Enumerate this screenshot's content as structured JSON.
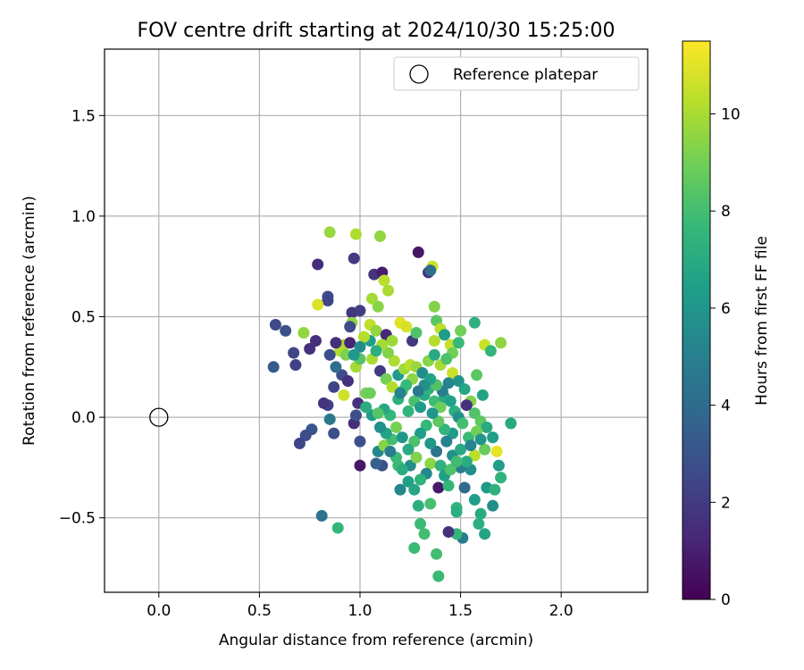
{
  "chart_data": {
    "type": "scatter",
    "title": "FOV centre drift starting at 2024/10/30 15:25:00",
    "xlabel": "Angular distance from reference (arcmin)",
    "ylabel": "Rotation from reference (arcmin)",
    "xlim": [
      -0.27,
      2.43
    ],
    "ylim": [
      -0.87,
      1.83
    ],
    "xticks": [
      0.0,
      0.5,
      1.0,
      1.5,
      2.0
    ],
    "xtick_labels": [
      "0.0",
      "0.5",
      "1.0",
      "1.5",
      "2.0"
    ],
    "yticks": [
      -0.5,
      0.0,
      0.5,
      1.0,
      1.5
    ],
    "ytick_labels": [
      "−0.5",
      "0.0",
      "0.5",
      "1.0",
      "1.5"
    ],
    "grid": true,
    "legend": {
      "placement": "top-right",
      "entries": [
        {
          "label": "Reference platepar",
          "marker": "open-circle"
        }
      ]
    },
    "reference_point": {
      "x": 0.0,
      "y": 0.0
    },
    "colorbar": {
      "label": "Hours from first FF file",
      "colormap": "viridis",
      "range": [
        0,
        11.5
      ],
      "ticks": [
        0,
        2,
        4,
        6,
        8,
        10
      ],
      "tick_labels": [
        "0",
        "2",
        "4",
        "6",
        "8",
        "10"
      ]
    },
    "colormap_stops": [
      "#440154",
      "#482878",
      "#3e4989",
      "#31688e",
      "#26828e",
      "#1f9e89",
      "#35b779",
      "#6ece58",
      "#b5de2b",
      "#fde725"
    ],
    "series": [
      {
        "color_by": "hours",
        "points": [
          [
            0.58,
            0.46,
            2.6
          ],
          [
            0.63,
            0.43,
            2.9
          ],
          [
            0.57,
            0.25,
            3.3
          ],
          [
            0.67,
            0.32,
            2.4
          ],
          [
            0.68,
            0.26,
            2.3
          ],
          [
            0.75,
            0.34,
            1.6
          ],
          [
            0.78,
            0.38,
            1.5
          ],
          [
            0.72,
            0.42,
            9.6
          ],
          [
            0.79,
            0.76,
            1.5
          ],
          [
            0.85,
            0.92,
            9.7
          ],
          [
            0.84,
            0.6,
            2.6
          ],
          [
            0.84,
            0.58,
            2.4
          ],
          [
            0.79,
            0.56,
            10.9
          ],
          [
            0.97,
            0.79,
            2.0
          ],
          [
            0.98,
            0.91,
            10.1
          ],
          [
            1.1,
            0.9,
            9.6
          ],
          [
            1.07,
            0.71,
            1.8
          ],
          [
            1.11,
            0.72,
            0.9
          ],
          [
            1.12,
            0.68,
            10.3
          ],
          [
            1.14,
            0.63,
            10.0
          ],
          [
            1.29,
            0.82,
            0.7
          ],
          [
            1.36,
            0.75,
            10.6
          ],
          [
            1.34,
            0.72,
            1.5
          ],
          [
            1.35,
            0.73,
            4.1
          ],
          [
            1.06,
            0.59,
            9.9
          ],
          [
            1.09,
            0.55,
            9.4
          ],
          [
            0.96,
            0.52,
            1.8
          ],
          [
            1.0,
            0.53,
            2.1
          ],
          [
            0.96,
            0.47,
            9.5
          ],
          [
            0.95,
            0.45,
            2.6
          ],
          [
            0.92,
            0.36,
            9.9
          ],
          [
            0.9,
            0.33,
            10.2
          ],
          [
            0.93,
            0.31,
            9.2
          ],
          [
            0.85,
            0.31,
            2.8
          ],
          [
            0.88,
            0.37,
            1.6
          ],
          [
            0.95,
            0.37,
            1.2
          ],
          [
            1.05,
            0.46,
            10.4
          ],
          [
            1.08,
            0.43,
            9.6
          ],
          [
            1.13,
            0.41,
            1.3
          ],
          [
            1.16,
            0.38,
            9.8
          ],
          [
            1.2,
            0.47,
            11.0
          ],
          [
            1.23,
            0.45,
            10.8
          ],
          [
            1.26,
            0.38,
            1.9
          ],
          [
            1.28,
            0.42,
            8.3
          ],
          [
            1.37,
            0.55,
            9.3
          ],
          [
            1.38,
            0.48,
            8.5
          ],
          [
            1.4,
            0.44,
            10.4
          ],
          [
            1.37,
            0.38,
            10.2
          ],
          [
            1.42,
            0.41,
            6.3
          ],
          [
            1.45,
            0.36,
            10.5
          ],
          [
            1.46,
            0.32,
            9.0
          ],
          [
            1.5,
            0.43,
            9.0
          ],
          [
            1.49,
            0.37,
            7.7
          ],
          [
            1.57,
            0.47,
            7.3
          ],
          [
            1.62,
            0.36,
            10.6
          ],
          [
            1.65,
            0.33,
            7.5
          ],
          [
            1.7,
            0.37,
            9.5
          ],
          [
            1.58,
            0.21,
            8.5
          ],
          [
            1.61,
            0.11,
            6.7
          ],
          [
            1.55,
            0.08,
            9.3
          ],
          [
            1.53,
            0.06,
            1.6
          ],
          [
            1.57,
            0.02,
            8.3
          ],
          [
            1.6,
            -0.02,
            8.6
          ],
          [
            1.63,
            -0.05,
            7.0
          ],
          [
            1.66,
            -0.1,
            6.4
          ],
          [
            1.75,
            -0.03,
            6.9
          ],
          [
            1.68,
            -0.17,
            11.1
          ],
          [
            1.62,
            -0.16,
            8.8
          ],
          [
            1.57,
            -0.19,
            10.3
          ],
          [
            1.55,
            -0.26,
            5.7
          ],
          [
            1.5,
            -0.25,
            4.8
          ],
          [
            1.52,
            -0.35,
            4.0
          ],
          [
            1.57,
            -0.41,
            6.4
          ],
          [
            1.63,
            -0.35,
            6.2
          ],
          [
            1.67,
            -0.36,
            7.3
          ],
          [
            1.69,
            -0.24,
            6.4
          ],
          [
            1.7,
            -0.3,
            7.4
          ],
          [
            1.66,
            -0.44,
            5.7
          ],
          [
            1.6,
            -0.48,
            7.0
          ],
          [
            1.59,
            -0.53,
            7.2
          ],
          [
            1.62,
            -0.58,
            6.7
          ],
          [
            1.51,
            -0.6,
            4.8
          ],
          [
            1.48,
            -0.58,
            7.6
          ],
          [
            1.44,
            -0.57,
            1.7
          ],
          [
            1.38,
            -0.68,
            8.0
          ],
          [
            1.39,
            -0.79,
            7.8
          ],
          [
            1.27,
            -0.65,
            7.8
          ],
          [
            1.3,
            -0.53,
            7.8
          ],
          [
            1.32,
            -0.58,
            8.0
          ],
          [
            1.29,
            -0.44,
            7.2
          ],
          [
            1.35,
            -0.43,
            8.1
          ],
          [
            1.39,
            -0.35,
            0.8
          ],
          [
            1.44,
            -0.34,
            7.6
          ],
          [
            1.48,
            -0.45,
            7.5
          ],
          [
            1.48,
            -0.47,
            7.2
          ],
          [
            1.2,
            -0.36,
            5.3
          ],
          [
            1.24,
            -0.32,
            6.5
          ],
          [
            1.25,
            -0.24,
            5.6
          ],
          [
            1.28,
            -0.2,
            9.3
          ],
          [
            1.35,
            -0.23,
            9.5
          ],
          [
            1.19,
            -0.24,
            7.8
          ],
          [
            1.11,
            -0.24,
            2.9
          ],
          [
            1.08,
            -0.23,
            3.5
          ],
          [
            1.0,
            -0.24,
            0.7
          ],
          [
            1.09,
            -0.17,
            5.3
          ],
          [
            1.12,
            -0.14,
            9.4
          ],
          [
            1.16,
            -0.11,
            8.0
          ],
          [
            1.0,
            -0.12,
            2.8
          ],
          [
            0.97,
            -0.03,
            1.5
          ],
          [
            0.98,
            0.01,
            2.8
          ],
          [
            0.99,
            0.07,
            1.7
          ],
          [
            1.03,
            0.12,
            9.1
          ],
          [
            1.05,
            0.12,
            8.9
          ],
          [
            1.06,
            0.01,
            6.3
          ],
          [
            1.03,
            0.05,
            7.1
          ],
          [
            0.87,
            -0.08,
            2.8
          ],
          [
            0.84,
            0.06,
            2.3
          ],
          [
            0.85,
            -0.01,
            4.6
          ],
          [
            0.82,
            0.07,
            1.7
          ],
          [
            0.76,
            -0.06,
            3.1
          ],
          [
            0.73,
            -0.09,
            2.7
          ],
          [
            0.7,
            -0.13,
            2.4
          ],
          [
            0.81,
            -0.49,
            4.4
          ],
          [
            0.89,
            -0.55,
            7.6
          ],
          [
            0.92,
            0.11,
            10.7
          ],
          [
            0.91,
            0.21,
            2.7
          ],
          [
            0.87,
            0.15,
            2.4
          ],
          [
            0.88,
            0.25,
            4.2
          ],
          [
            0.94,
            0.18,
            1.6
          ],
          [
            0.98,
            0.25,
            9.9
          ],
          [
            1.0,
            0.29,
            8.4
          ],
          [
            1.06,
            0.29,
            10.0
          ],
          [
            1.1,
            0.23,
            2.0
          ],
          [
            1.13,
            0.19,
            9.0
          ],
          [
            1.16,
            0.15,
            10.2
          ],
          [
            1.19,
            0.09,
            7.3
          ],
          [
            1.21,
            0.13,
            8.3
          ],
          [
            1.24,
            0.03,
            7.5
          ],
          [
            1.27,
            0.08,
            8.1
          ],
          [
            1.3,
            0.05,
            6.2
          ],
          [
            1.32,
            0.11,
            6.9
          ],
          [
            1.34,
            0.14,
            7.4
          ],
          [
            1.37,
            0.08,
            7.9
          ],
          [
            1.4,
            0.05,
            8.9
          ],
          [
            1.42,
            0.1,
            7.0
          ],
          [
            1.45,
            0.08,
            6.5
          ],
          [
            1.47,
            0.03,
            7.2
          ],
          [
            1.49,
            0.0,
            5.7
          ],
          [
            1.51,
            -0.03,
            8.0
          ],
          [
            1.54,
            -0.1,
            7.8
          ],
          [
            1.46,
            -0.08,
            6.3
          ],
          [
            1.42,
            -0.06,
            7.5
          ],
          [
            1.39,
            -0.02,
            8.6
          ],
          [
            1.36,
            0.02,
            6.0
          ],
          [
            1.33,
            -0.04,
            7.7
          ],
          [
            1.3,
            -0.08,
            6.4
          ],
          [
            1.27,
            -0.12,
            8.2
          ],
          [
            1.24,
            -0.16,
            7.0
          ],
          [
            1.21,
            -0.1,
            6.1
          ],
          [
            1.18,
            -0.05,
            9.1
          ],
          [
            1.15,
            0.01,
            7.6
          ],
          [
            1.12,
            0.04,
            6.8
          ],
          [
            1.09,
            0.02,
            8.4
          ],
          [
            1.19,
            0.21,
            6.2
          ],
          [
            1.22,
            0.24,
            9.8
          ],
          [
            1.25,
            0.26,
            10.3
          ],
          [
            1.28,
            0.25,
            9.7
          ],
          [
            1.31,
            0.22,
            5.6
          ],
          [
            1.34,
            0.28,
            9.4
          ],
          [
            1.37,
            0.31,
            6.9
          ],
          [
            1.4,
            0.26,
            10.0
          ],
          [
            1.43,
            0.29,
            8.2
          ],
          [
            1.46,
            0.22,
            10.6
          ],
          [
            1.49,
            0.18,
            5.9
          ],
          [
            1.52,
            0.14,
            6.8
          ],
          [
            1.44,
            0.17,
            5.2
          ],
          [
            1.41,
            0.13,
            4.9
          ],
          [
            1.38,
            0.16,
            8.3
          ],
          [
            1.35,
            0.19,
            6.6
          ],
          [
            1.32,
            0.16,
            5.8
          ],
          [
            1.29,
            0.13,
            4.7
          ],
          [
            1.26,
            0.19,
            9.5
          ],
          [
            1.23,
            0.16,
            7.7
          ],
          [
            1.2,
            0.12,
            5.1
          ],
          [
            1.17,
            0.28,
            10.1
          ],
          [
            1.14,
            0.32,
            9.3
          ],
          [
            1.11,
            0.36,
            9.9
          ],
          [
            1.08,
            0.33,
            7.2
          ],
          [
            1.05,
            0.38,
            6.4
          ],
          [
            1.02,
            0.4,
            10.2
          ],
          [
            1.0,
            0.35,
            5.5
          ],
          [
            0.97,
            0.31,
            6.1
          ],
          [
            1.43,
            -0.12,
            5.0
          ],
          [
            1.46,
            -0.19,
            5.8
          ],
          [
            1.5,
            -0.16,
            6.9
          ],
          [
            1.53,
            -0.22,
            7.1
          ],
          [
            1.55,
            -0.14,
            5.2
          ],
          [
            1.58,
            -0.07,
            9.0
          ],
          [
            1.6,
            -0.11,
            6.0
          ],
          [
            1.38,
            -0.17,
            4.4
          ],
          [
            1.35,
            -0.13,
            6.1
          ],
          [
            1.33,
            -0.28,
            5.4
          ],
          [
            1.3,
            -0.31,
            7.4
          ],
          [
            1.27,
            -0.36,
            6.8
          ],
          [
            1.4,
            -0.24,
            7.3
          ],
          [
            1.42,
            -0.29,
            6.5
          ],
          [
            1.45,
            -0.26,
            8.2
          ],
          [
            1.48,
            -0.22,
            7.9
          ],
          [
            1.21,
            -0.26,
            7.1
          ],
          [
            1.18,
            -0.2,
            7.8
          ],
          [
            1.15,
            -0.17,
            4.9
          ],
          [
            1.13,
            -0.08,
            6.6
          ],
          [
            1.1,
            -0.05,
            5.7
          ]
        ]
      }
    ]
  }
}
